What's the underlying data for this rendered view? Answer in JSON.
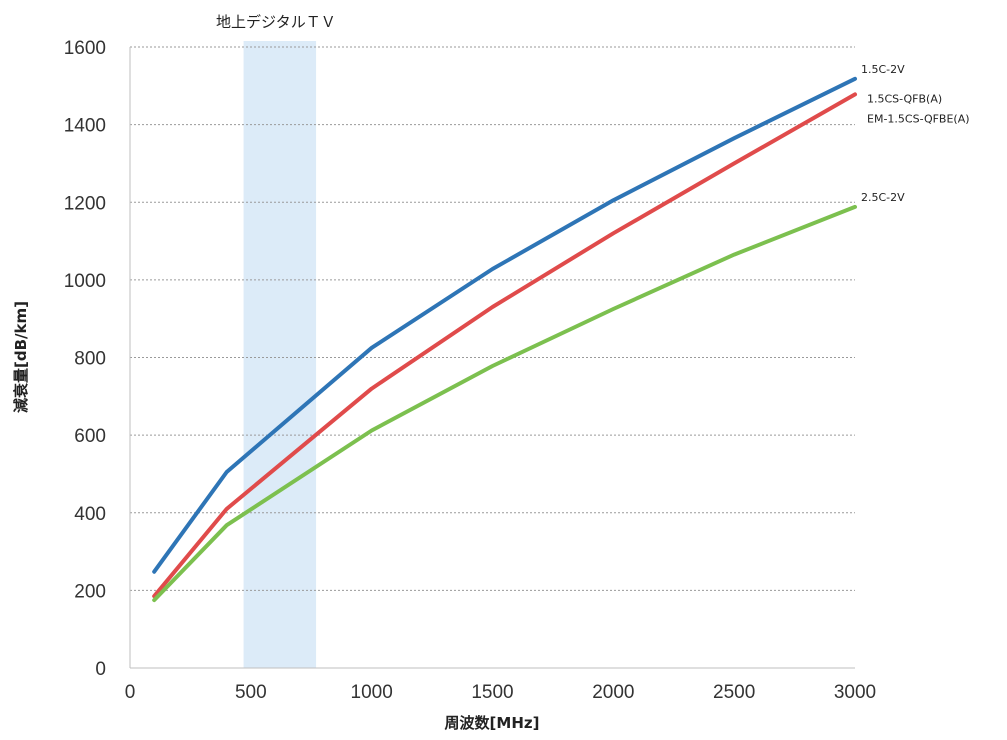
{
  "chart_data": {
    "type": "line",
    "title": "",
    "xlabel": "周波数[MHz]",
    "ylabel": "減衰量[dB/km]",
    "xlim": [
      0,
      3000
    ],
    "ylim": [
      0,
      1600
    ],
    "x_ticks": [
      "0",
      "500",
      "1000",
      "1500",
      "2000",
      "2500",
      "3000"
    ],
    "y_ticks": [
      "0",
      "200",
      "400",
      "600",
      "800",
      "1000",
      "1200",
      "1400",
      "1600"
    ],
    "grid": "horizontal dotted",
    "highlight_band": {
      "label": "地上デジタルＴＶ",
      "x_range": [
        470,
        770
      ],
      "color": "#dcebf8"
    },
    "series": [
      {
        "name": "1.5C-2V",
        "color": "#2e75b6",
        "labels": [
          "1.5C-2V"
        ],
        "points": [
          [
            100,
            248
          ],
          [
            400,
            505
          ],
          [
            1000,
            825
          ],
          [
            1500,
            1028
          ],
          [
            2000,
            1205
          ],
          [
            2500,
            1365
          ],
          [
            3000,
            1518
          ]
        ]
      },
      {
        "name": "1.5CS-QFB(A) / EM-1.5CS-QFBE(A)",
        "color": "#e04b4b",
        "labels": [
          "1.5CS-QFB(A)",
          "EM-1.5CS-QFBE(A)"
        ],
        "points": [
          [
            100,
            185
          ],
          [
            400,
            410
          ],
          [
            1000,
            720
          ],
          [
            1500,
            930
          ],
          [
            2000,
            1120
          ],
          [
            2500,
            1300
          ],
          [
            3000,
            1478
          ]
        ]
      },
      {
        "name": "2.5C-2V",
        "color": "#7cc04f",
        "labels": [
          "2.5C-2V"
        ],
        "points": [
          [
            100,
            175
          ],
          [
            400,
            368
          ],
          [
            1000,
            612
          ],
          [
            1500,
            778
          ],
          [
            2000,
            925
          ],
          [
            2500,
            1065
          ],
          [
            3000,
            1188
          ]
        ]
      }
    ]
  }
}
